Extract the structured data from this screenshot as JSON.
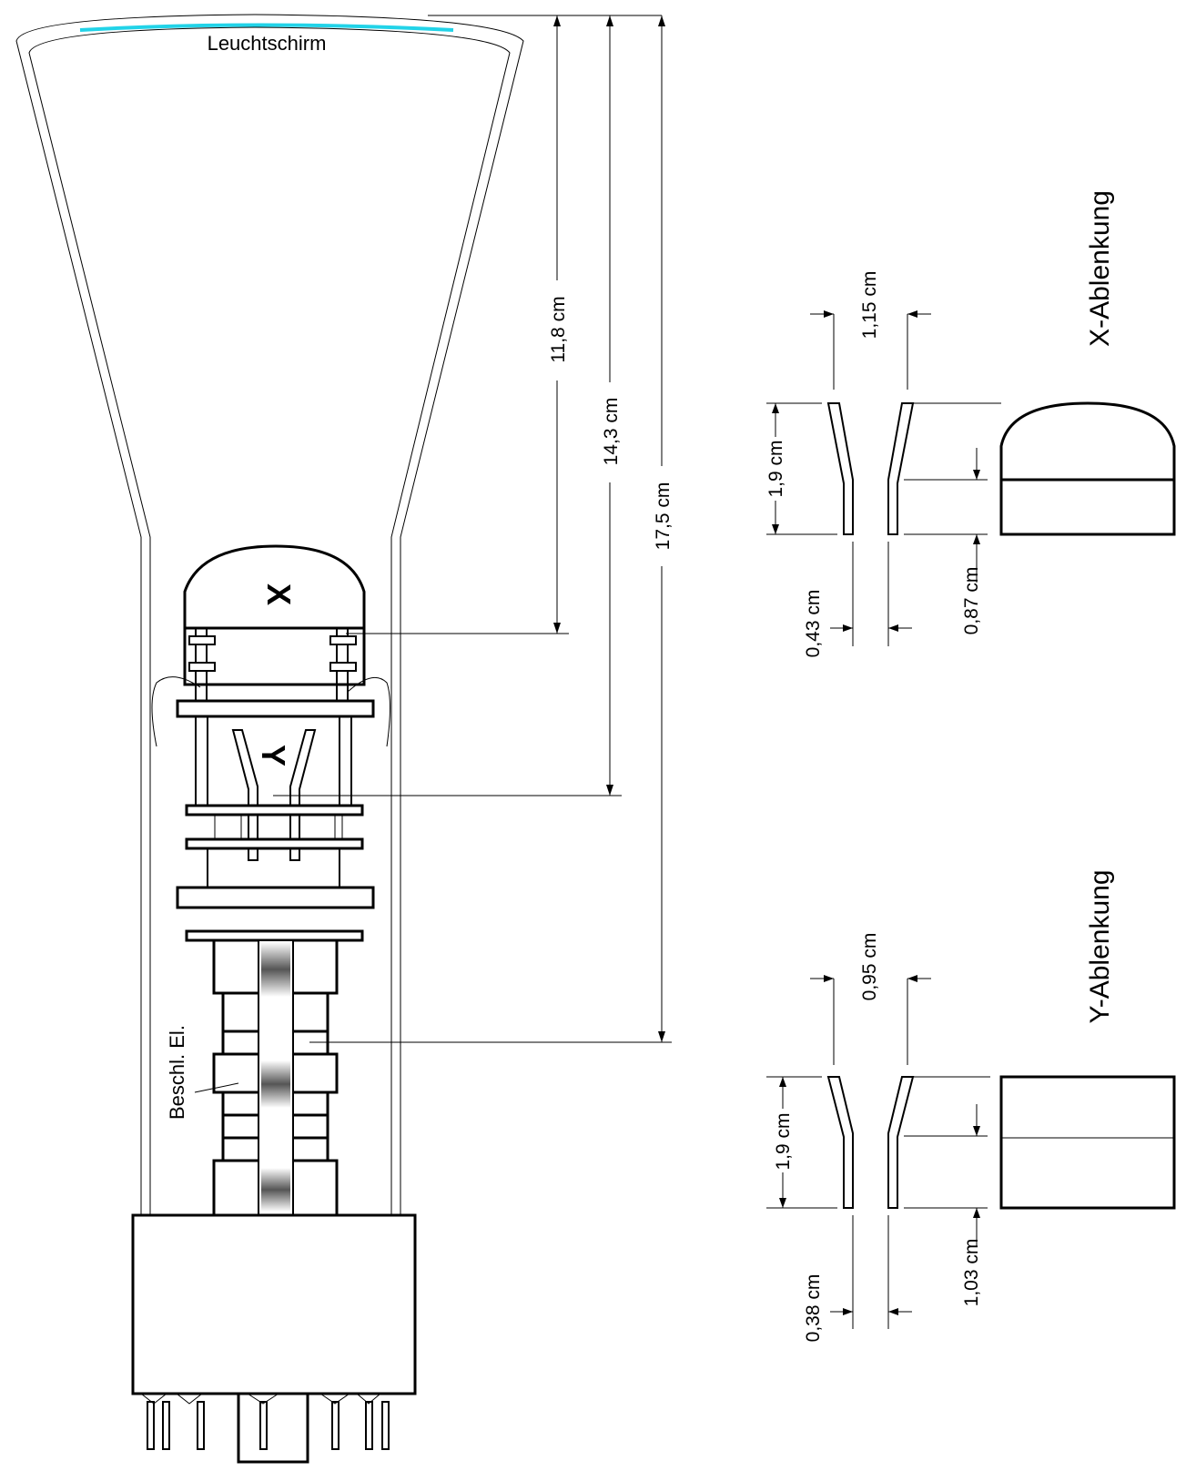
{
  "labels": {
    "screen": "Leuchtschirm",
    "x_plate": "X",
    "y_plate": "Y",
    "accel_electrode": "Beschl. El.",
    "x_title": "X-Ablenkung",
    "y_title": "Y-Ablenkung"
  },
  "tube_dimensions": {
    "screen_to_x": "11,8 cm",
    "screen_to_y": "14,3 cm",
    "screen_to_accel": "17,5 cm"
  },
  "x_deflection": {
    "top_gap": "1,15 cm",
    "length": "1,9 cm",
    "bottom_gap": "0,43 cm",
    "straight_length": "0,87 cm"
  },
  "y_deflection": {
    "top_gap": "0,95 cm",
    "length": "1,9 cm",
    "bottom_gap": "0,38 cm",
    "straight_length": "1,03 cm"
  },
  "colors": {
    "screen_phosphor": "#22d3e8",
    "line": "#000000"
  }
}
